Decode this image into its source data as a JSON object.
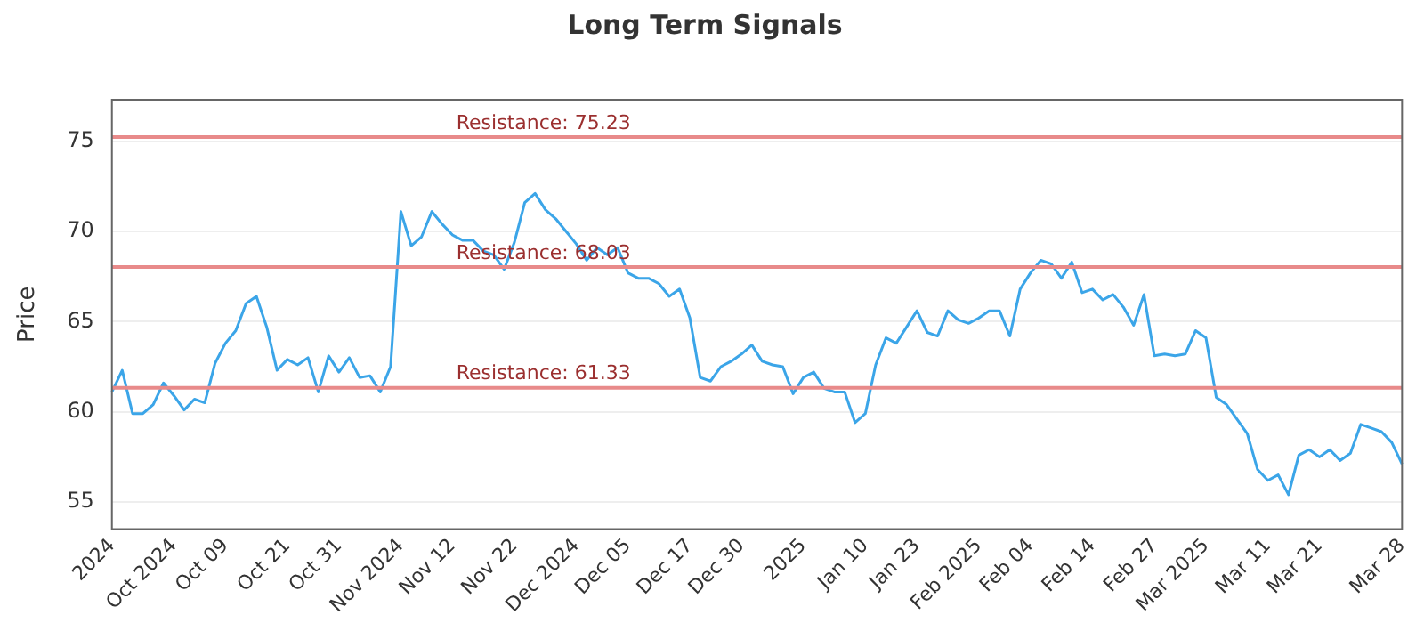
{
  "chart_data": {
    "type": "line",
    "title": "Long Term Signals",
    "ylabel": "Price",
    "categories": [
      "2024",
      null,
      null,
      null,
      null,
      null,
      "Oct 2024",
      null,
      null,
      null,
      null,
      "Oct 09",
      null,
      null,
      null,
      null,
      null,
      "Oct 21",
      null,
      null,
      null,
      null,
      "Oct 31",
      null,
      null,
      null,
      null,
      null,
      "Nov 2024",
      null,
      null,
      null,
      null,
      "Nov 12",
      null,
      null,
      null,
      null,
      null,
      "Nov 22",
      null,
      null,
      null,
      null,
      null,
      "Dec 2024",
      null,
      null,
      null,
      null,
      "Dec 05",
      null,
      null,
      null,
      null,
      null,
      "Dec 17",
      null,
      null,
      null,
      null,
      "Dec 30",
      null,
      null,
      null,
      null,
      null,
      "2025",
      null,
      null,
      null,
      null,
      null,
      "Jan 10",
      null,
      null,
      null,
      null,
      "Jan 23",
      null,
      null,
      null,
      null,
      null,
      "Feb 2025",
      null,
      null,
      null,
      null,
      "Feb 04",
      null,
      null,
      null,
      null,
      null,
      "Feb 14",
      null,
      null,
      null,
      null,
      null,
      "Feb 27",
      null,
      null,
      null,
      null,
      "Mar 2025",
      null,
      null,
      null,
      null,
      null,
      "Mar 11",
      null,
      null,
      null,
      null,
      "Mar 21",
      null,
      null,
      null,
      null,
      null,
      null,
      null,
      "Mar 28"
    ],
    "series": [
      {
        "color": "#3ba5e8",
        "values": [
          61.1,
          62.3,
          59.9,
          59.9,
          60.4,
          61.6,
          60.9,
          60.1,
          60.7,
          60.5,
          62.7,
          63.8,
          64.5,
          66.0,
          66.4,
          64.7,
          62.3,
          62.9,
          62.6,
          63.0,
          61.1,
          63.1,
          62.2,
          63.0,
          61.9,
          62.0,
          61.1,
          62.5,
          71.1,
          69.2,
          69.7,
          71.1,
          70.4,
          69.8,
          69.5,
          69.5,
          68.9,
          68.7,
          67.9,
          69.4,
          71.6,
          72.1,
          71.2,
          70.7,
          70.0,
          69.3,
          68.4,
          69.1,
          68.7,
          69.1,
          67.7,
          67.4,
          67.4,
          67.1,
          66.4,
          66.8,
          65.2,
          61.9,
          61.7,
          62.5,
          62.8,
          63.2,
          63.7,
          62.8,
          62.6,
          62.5,
          61.0,
          61.9,
          62.2,
          61.3,
          61.1,
          61.1,
          59.4,
          59.9,
          62.6,
          64.1,
          63.8,
          64.7,
          65.6,
          64.4,
          64.2,
          65.6,
          65.1,
          64.9,
          65.2,
          65.6,
          65.6,
          64.2,
          66.8,
          67.7,
          68.4,
          68.2,
          67.4,
          68.3,
          66.6,
          66.8,
          66.2,
          66.5,
          65.8,
          64.8,
          66.5,
          63.1,
          63.2,
          63.1,
          63.2,
          64.5,
          64.1,
          60.8,
          60.4,
          59.6,
          58.8,
          56.8,
          56.2,
          56.5,
          55.4,
          57.6,
          57.9,
          57.5,
          57.9,
          57.3,
          57.7,
          59.3,
          59.1,
          58.9,
          58.3,
          57.1
        ]
      }
    ],
    "ylim": [
      53.5,
      77.3
    ],
    "yticks": [
      55,
      60,
      65,
      70,
      75
    ],
    "grid": "y",
    "ref_lines": [
      {
        "axis": "y",
        "value": 75.23,
        "label": "Resistance: 75.23",
        "color": "#e88a8a"
      },
      {
        "axis": "y",
        "value": 68.03,
        "label": "Resistance: 68.03",
        "color": "#e88a8a"
      },
      {
        "axis": "y",
        "value": 61.33,
        "label": "Resistance: 61.33",
        "color": "#e88a8a"
      }
    ]
  }
}
